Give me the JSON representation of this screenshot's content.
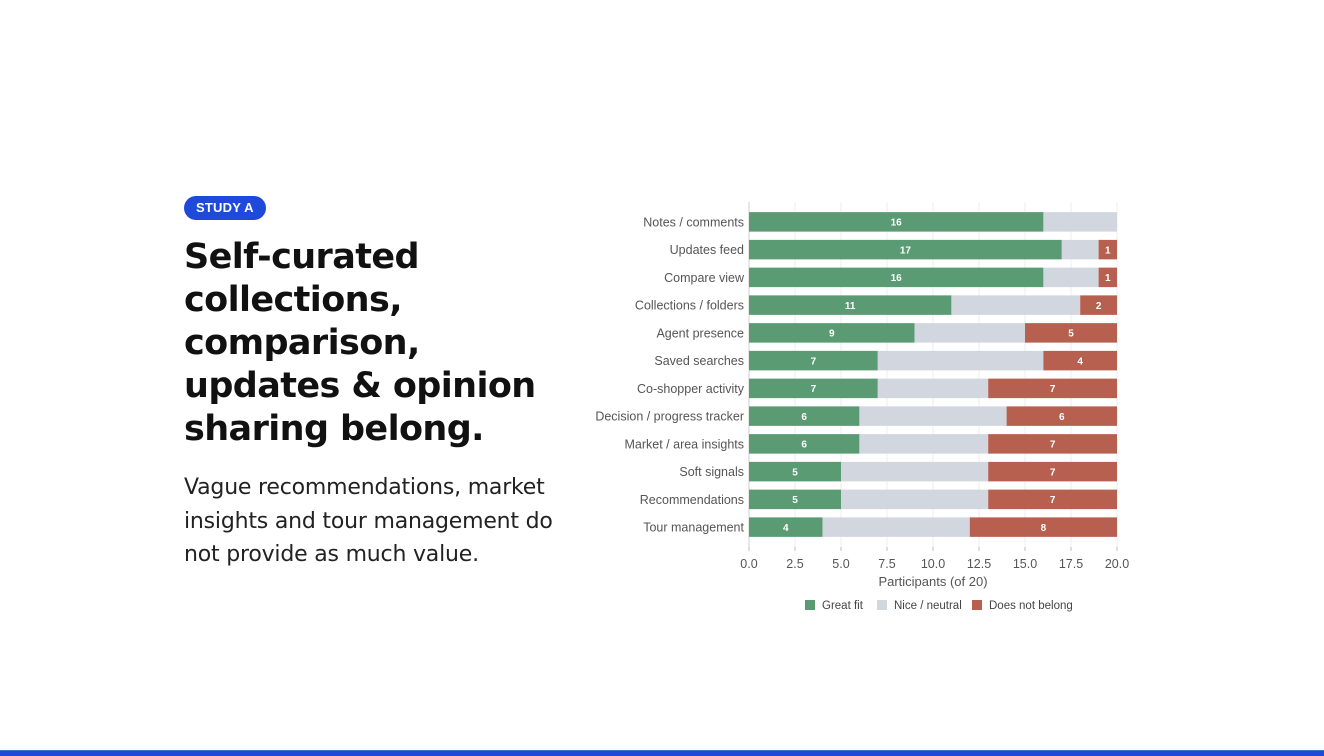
{
  "badge": "STUDY A",
  "headline": "Self-curated collections, comparison, updates & opinion sharing belong.",
  "body": "Vague recommendations, market insights and tour management do not provide as much value.",
  "colors": {
    "accent": "#1f49d9",
    "great_fit": "#5a9b74",
    "neutral": "#d2d6de",
    "does_not_belong": "#b76050"
  },
  "chart_data": {
    "type": "bar",
    "orientation": "horizontal",
    "stacked": true,
    "categories": [
      "Notes / comments",
      "Updates feed",
      "Compare view",
      "Collections / folders",
      "Agent presence",
      "Saved searches",
      "Co-shopper activity",
      "Decision / progress tracker",
      "Market / area insights",
      "Soft signals",
      "Recommendations",
      "Tour management"
    ],
    "series": [
      {
        "name": "Great fit",
        "values": [
          16,
          17,
          16,
          11,
          9,
          7,
          7,
          6,
          6,
          5,
          5,
          4
        ]
      },
      {
        "name": "Nice / neutral",
        "values": [
          4,
          2,
          3,
          7,
          6,
          9,
          6,
          8,
          7,
          8,
          8,
          8
        ]
      },
      {
        "name": "Does not belong",
        "values": [
          0,
          1,
          1,
          2,
          5,
          4,
          7,
          6,
          7,
          7,
          7,
          8
        ]
      }
    ],
    "xlabel": "Participants (of 20)",
    "ylabel": "",
    "xlim": [
      0,
      20
    ],
    "xticks": [
      "0.0",
      "2.5",
      "5.0",
      "7.5",
      "10.0",
      "12.5",
      "15.0",
      "17.5",
      "20.0"
    ],
    "data_labels": "great fit and does-not-belong segments",
    "grid": true,
    "legend": "bottom-center"
  }
}
